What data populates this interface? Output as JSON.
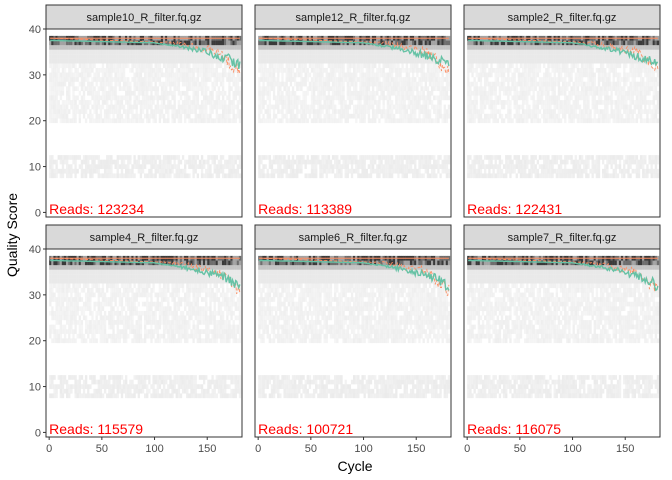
{
  "chart_data": {
    "type": "heatmap",
    "xlabel": "Cycle",
    "ylabel": "Quality Score",
    "xlim": [
      -3,
      183
    ],
    "ylim": [
      -1,
      40
    ],
    "x_ticks": [
      0,
      50,
      100,
      150
    ],
    "y_ticks": [
      0,
      10,
      20,
      30,
      40
    ],
    "grid": false,
    "legend": "none",
    "colors": {
      "heat_light": "#f2f2f2",
      "heat_dark": "#333333",
      "mean_line": "#66c2a5",
      "quantile_line": "#fc8d62",
      "reads_text": "#ff0000",
      "strip_fill": "#d9d9d9"
    },
    "series": [
      {
        "name": "mean",
        "approx_values": {
          "cycles": [
            1,
            100,
            140,
            170,
            180
          ],
          "scores": [
            37.5,
            37.0,
            35.5,
            33.5,
            32.0
          ]
        }
      },
      {
        "name": "median",
        "approx_values": {
          "cycles": [
            1,
            180
          ],
          "scores": [
            38,
            38
          ]
        }
      },
      {
        "name": "q25",
        "approx_values": {
          "cycles": [
            1,
            120,
            160,
            180
          ],
          "scores": [
            38,
            37,
            35,
            31
          ]
        }
      }
    ],
    "panels": [
      {
        "title": "sample10_R_filter.fq.gz",
        "reads_label": "Reads:  123234",
        "seed": 11
      },
      {
        "title": "sample12_R_filter.fq.gz",
        "reads_label": "Reads:  113389",
        "seed": 23
      },
      {
        "title": "sample2_R_filter.fq.gz",
        "reads_label": "Reads:  122431",
        "seed": 37
      },
      {
        "title": "sample4_R_filter.fq.gz",
        "reads_label": "Reads:  115579",
        "seed": 41
      },
      {
        "title": "sample6_R_filter.fq.gz",
        "reads_label": "Reads:  100721",
        "seed": 53
      },
      {
        "title": "sample7_R_filter.fq.gz",
        "reads_label": "Reads:  116075",
        "seed": 67
      }
    ]
  }
}
